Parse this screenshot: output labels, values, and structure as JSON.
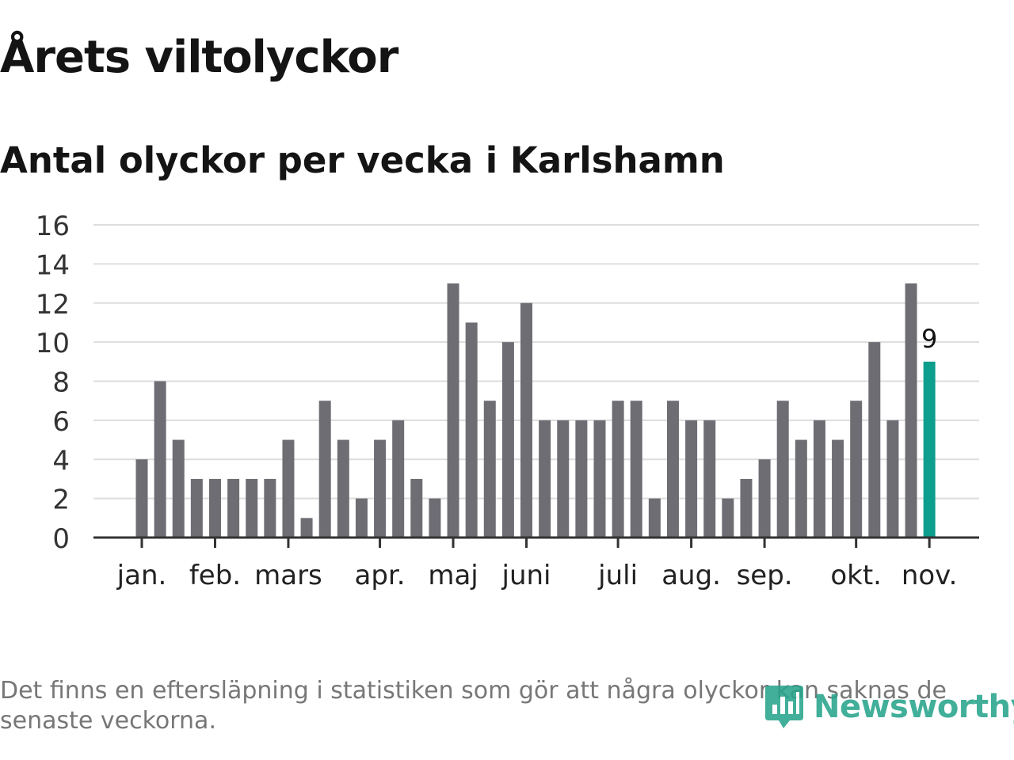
{
  "title": "Årets viltolyckor",
  "subtitle": "Antal olyckor per vecka i Karlshamn",
  "footnote": "Det finns en eftersläpning i statistiken som gör att några olyckor kan saknas de senaste veckorna.",
  "logo": {
    "text": "Newsworthy",
    "icon": "newsworthy-logo-icon"
  },
  "colors": {
    "bar": "#6e6d74",
    "highlight": "#0d9e8e",
    "grid": "#dddddd",
    "axis": "#333333",
    "logo": "#27a58c"
  },
  "chart_data": {
    "type": "bar",
    "title": "Antal olyckor per vecka i Karlshamn",
    "xlabel": "",
    "ylabel": "",
    "ylim": [
      0,
      16
    ],
    "yticks": [
      "0",
      "2",
      "4",
      "6",
      "8",
      "10",
      "12",
      "14",
      "16"
    ],
    "grid": true,
    "xtick_labels": [
      {
        "label": "jan.",
        "week": 1
      },
      {
        "label": "feb.",
        "week": 5
      },
      {
        "label": "mars",
        "week": 9
      },
      {
        "label": "apr.",
        "week": 14
      },
      {
        "label": "maj",
        "week": 18
      },
      {
        "label": "juni",
        "week": 22
      },
      {
        "label": "juli",
        "week": 27
      },
      {
        "label": "aug.",
        "week": 31
      },
      {
        "label": "sep.",
        "week": 35
      },
      {
        "label": "okt.",
        "week": 40
      },
      {
        "label": "nov.",
        "week": 44
      }
    ],
    "weeks": [
      1,
      2,
      3,
      4,
      5,
      6,
      7,
      8,
      9,
      10,
      11,
      12,
      13,
      14,
      15,
      16,
      17,
      18,
      19,
      20,
      21,
      22,
      23,
      24,
      25,
      26,
      27,
      28,
      29,
      30,
      31,
      32,
      33,
      34,
      35,
      36,
      37,
      38,
      39,
      40,
      41,
      42,
      43,
      44
    ],
    "values": [
      4,
      8,
      5,
      3,
      3,
      3,
      3,
      3,
      5,
      1,
      7,
      5,
      2,
      5,
      6,
      3,
      2,
      13,
      11,
      7,
      10,
      12,
      6,
      6,
      6,
      6,
      7,
      7,
      2,
      7,
      6,
      6,
      2,
      3,
      4,
      7,
      5,
      6,
      5,
      7,
      10,
      6,
      13,
      9
    ],
    "highlight_index": 43,
    "highlight_label": "9"
  }
}
